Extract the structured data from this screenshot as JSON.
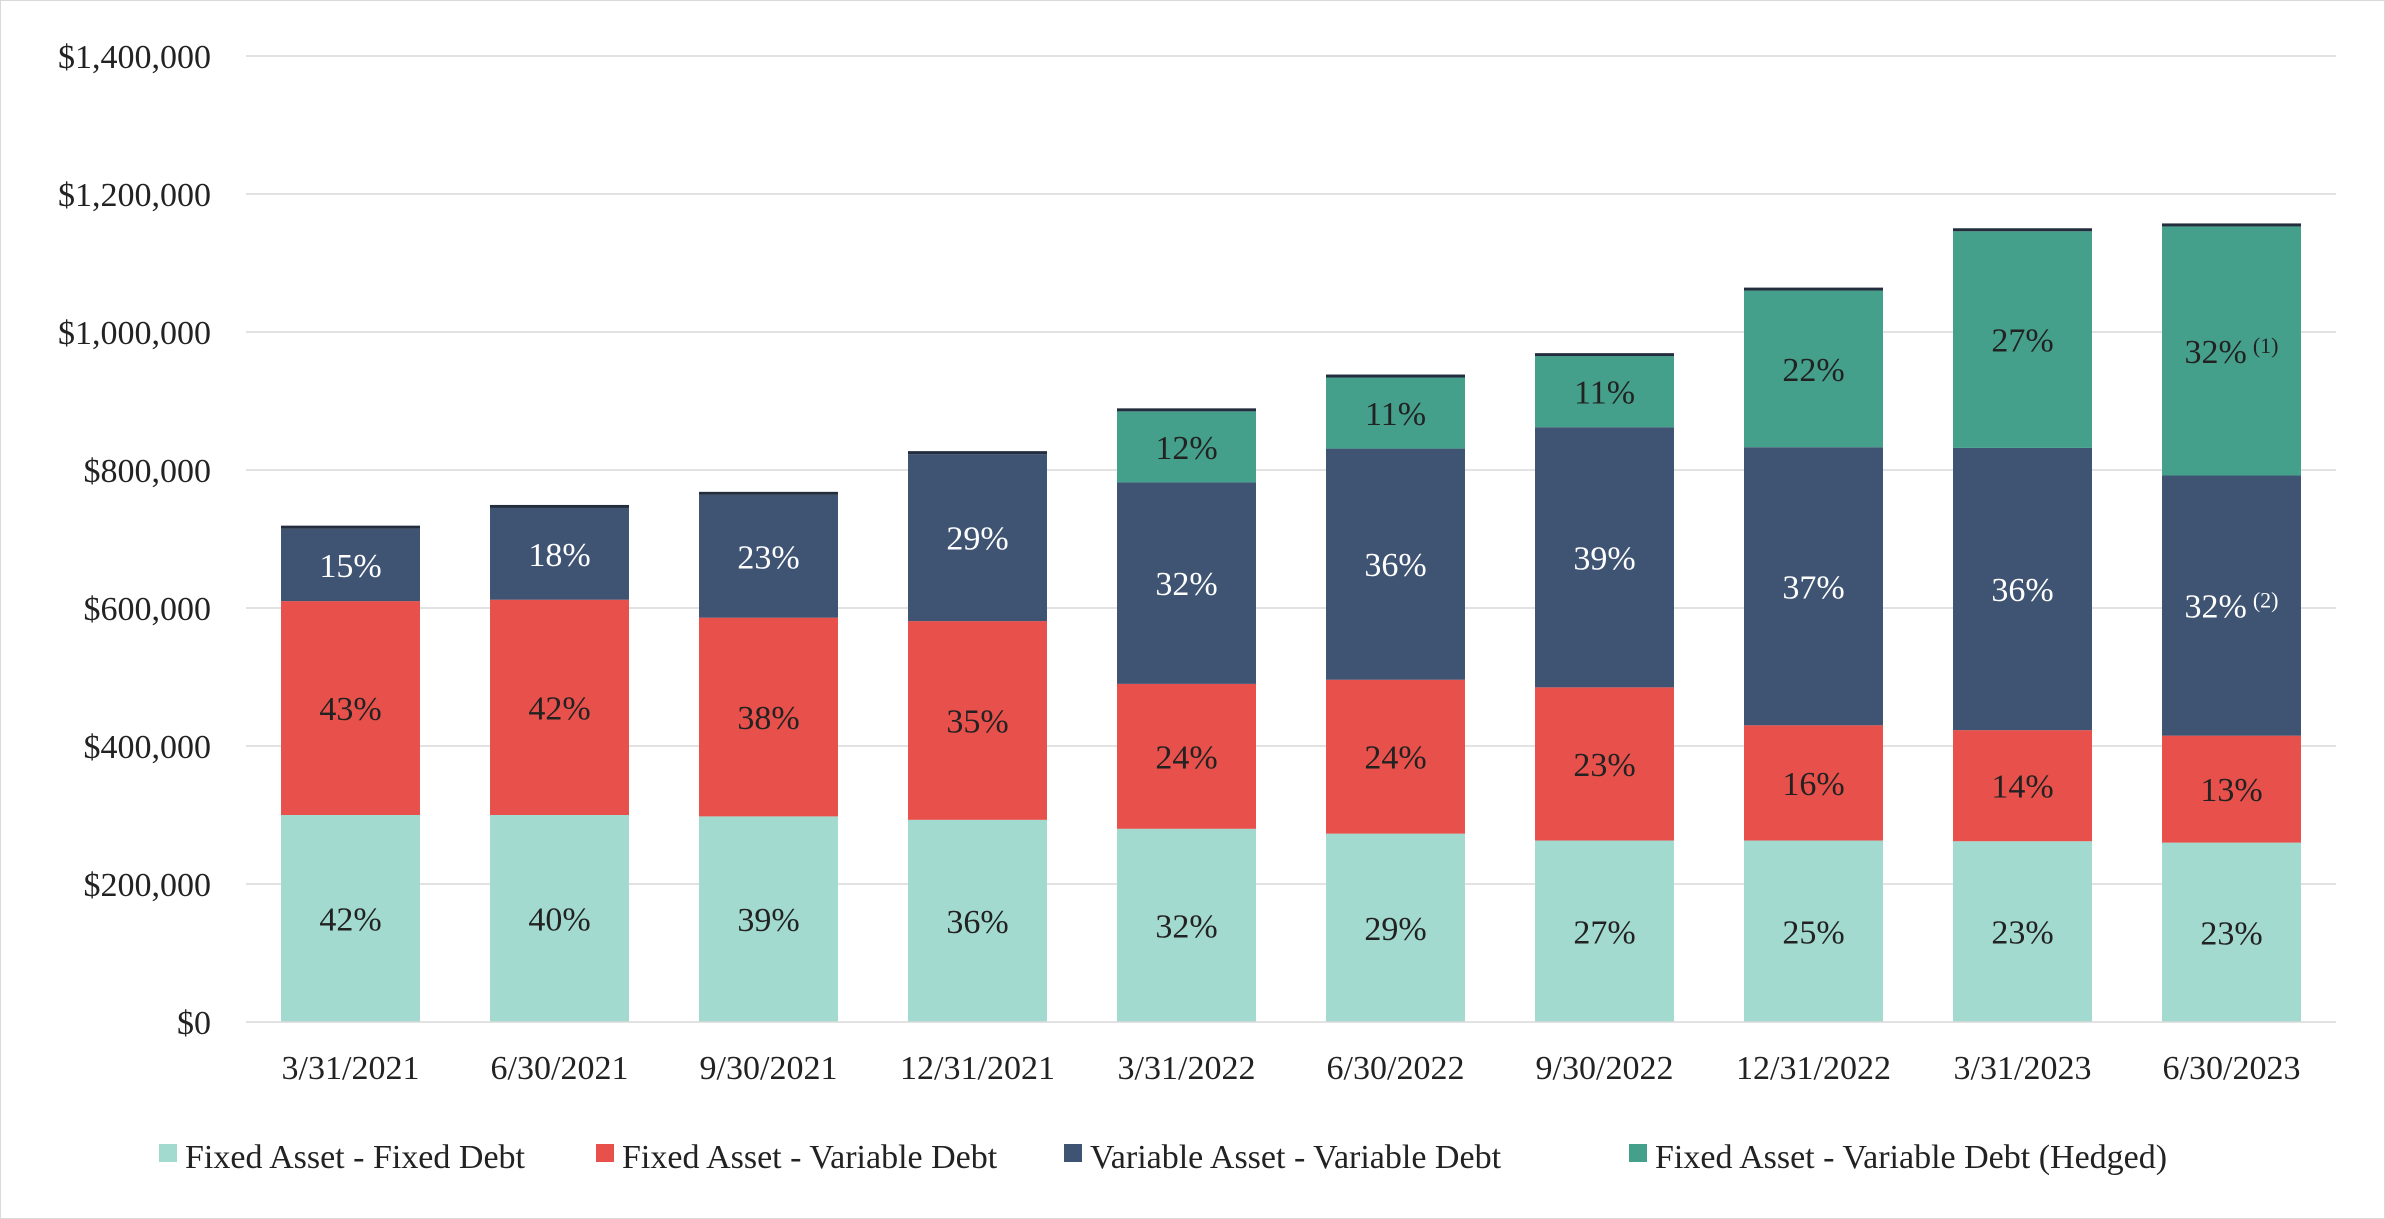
{
  "chart_data": {
    "type": "bar",
    "stacked": true,
    "title": "",
    "xlabel": "",
    "ylabel": "",
    "ylim": [
      0,
      1400000
    ],
    "y_ticks": [
      0,
      200000,
      400000,
      600000,
      800000,
      1000000,
      1200000,
      1400000
    ],
    "y_tick_labels": [
      "$0",
      "$200,000",
      "$400,000",
      "$600,000",
      "$800,000",
      "$1,000,000",
      "$1,200,000",
      "$1,400,000"
    ],
    "grid": true,
    "legend_position": "bottom",
    "categories": [
      "3/31/2021",
      "6/30/2021",
      "9/30/2021",
      "12/31/2021",
      "3/31/2022",
      "6/30/2022",
      "9/30/2022",
      "12/31/2022",
      "3/31/2023",
      "6/30/2023"
    ],
    "series": [
      {
        "name": "Fixed Asset - Fixed Debt",
        "color": "#a3dad0",
        "label_color": "#222222",
        "values": [
          300000,
          300000,
          298000,
          293000,
          280000,
          273000,
          263000,
          263000,
          262000,
          260000
        ],
        "labels": [
          "42%",
          "40%",
          "39%",
          "36%",
          "32%",
          "29%",
          "27%",
          "25%",
          "23%",
          "23%"
        ]
      },
      {
        "name": "Fixed Asset - Variable Debt",
        "color": "#e8504b",
        "label_color": "#222222",
        "values": [
          310000,
          312000,
          288000,
          288000,
          210000,
          223000,
          222000,
          167000,
          161000,
          155000
        ],
        "labels": [
          "43%",
          "42%",
          "38%",
          "35%",
          "24%",
          "24%",
          "23%",
          "16%",
          "14%",
          "13%"
        ]
      },
      {
        "name": "Variable Asset - Variable Debt",
        "color": "#3f5373",
        "label_color": "#ffffff",
        "values": [
          105000,
          133000,
          178000,
          242000,
          292000,
          335000,
          377000,
          403000,
          409000,
          377000
        ],
        "labels": [
          "15%",
          "18%",
          "23%",
          "29%",
          "32%",
          "36%",
          "39%",
          "37%",
          "36%",
          "32%"
        ],
        "label_notes": [
          "",
          "",
          "",
          "",
          "",
          "",
          "",
          "",
          "",
          "(2)"
        ]
      },
      {
        "name": "Fixed Asset - Variable Debt (Hedged)",
        "color": "#44a08b",
        "label_color": "#222222",
        "values": [
          0,
          0,
          0,
          0,
          103000,
          103000,
          103000,
          227000,
          314000,
          361000
        ],
        "labels": [
          "",
          "",
          "",
          "",
          "12%",
          "11%",
          "11%",
          "22%",
          "27%",
          "32%"
        ],
        "label_notes": [
          "",
          "",
          "",
          "",
          "",
          "",
          "",
          "",
          "",
          "(1)"
        ]
      }
    ],
    "top_cap_color": "#222d3d"
  }
}
